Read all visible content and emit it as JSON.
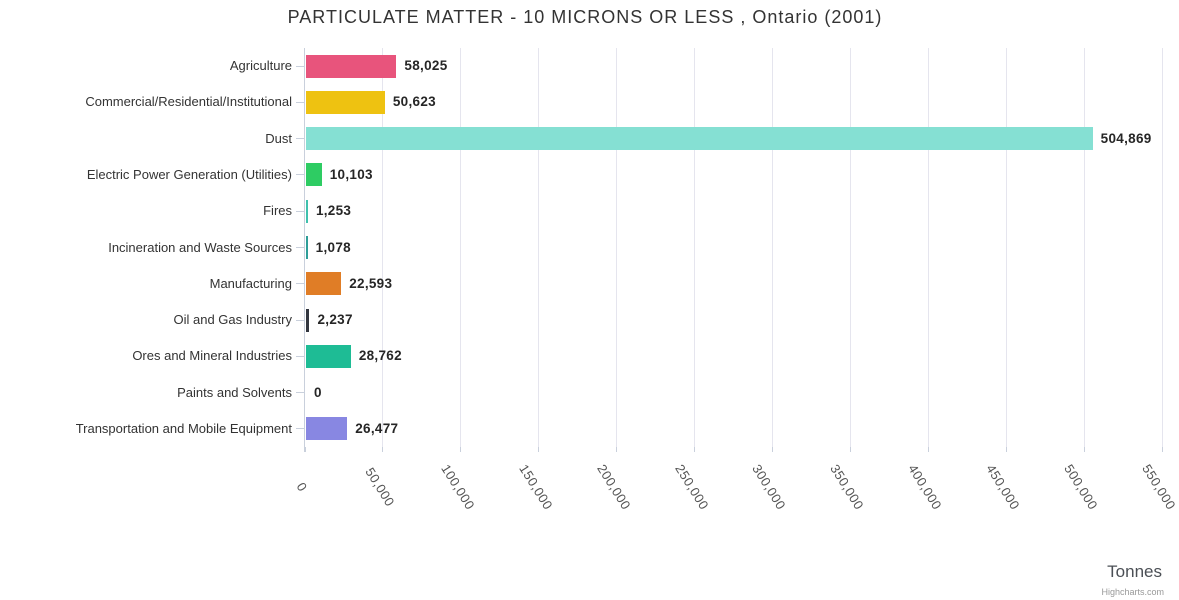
{
  "credits": "Highcharts.com",
  "chart_data": {
    "type": "bar",
    "orientation": "horizontal",
    "title": "PARTICULATE MATTER - 10 MICRONS OR LESS , Ontario (2001)",
    "xlabel": "Tonnes",
    "ylabel": "",
    "xlim": [
      0,
      550000
    ],
    "grid": true,
    "legend": "none",
    "categories": [
      "Agriculture",
      "Commercial/Residential/Institutional",
      "Dust",
      "Electric Power Generation (Utilities)",
      "Fires",
      "Incineration and Waste Sources",
      "Manufacturing",
      "Oil and Gas Industry",
      "Ores and Mineral Industries",
      "Paints and Solvents",
      "Transportation and Mobile Equipment"
    ],
    "values": [
      58025,
      50623,
      504869,
      10103,
      1253,
      1078,
      22593,
      2237,
      28762,
      0,
      26477
    ],
    "value_labels": [
      "58,025",
      "50,623",
      "504,869",
      "10,103",
      "1,253",
      "1,078",
      "22,593",
      "2,237",
      "28,762",
      "0",
      "26,477"
    ],
    "bar_colors": [
      "#e8547c",
      "#eec211",
      "#85e0d3",
      "#2ecc63",
      "#3fc1ad",
      "#2e9e98",
      "#e07d26",
      "#32363f",
      "#1ebc95",
      "#cccccc",
      "#8887e2"
    ],
    "x_ticks": [
      0,
      50000,
      100000,
      150000,
      200000,
      250000,
      300000,
      350000,
      400000,
      450000,
      500000,
      550000
    ],
    "x_tick_labels": [
      "0",
      "50,000",
      "100,000",
      "150,000",
      "200,000",
      "250,000",
      "300,000",
      "350,000",
      "400,000",
      "450,000",
      "500,000",
      "550,000"
    ]
  },
  "colors": {
    "grid": "#e5e5ee",
    "axis": "#c9d0dc",
    "title_text": "#333333",
    "category_text": "#333333",
    "value_text": "#262626",
    "tick_text": "#555555",
    "axis_title_text": "#4b4f55",
    "credits_text": "#999999"
  }
}
